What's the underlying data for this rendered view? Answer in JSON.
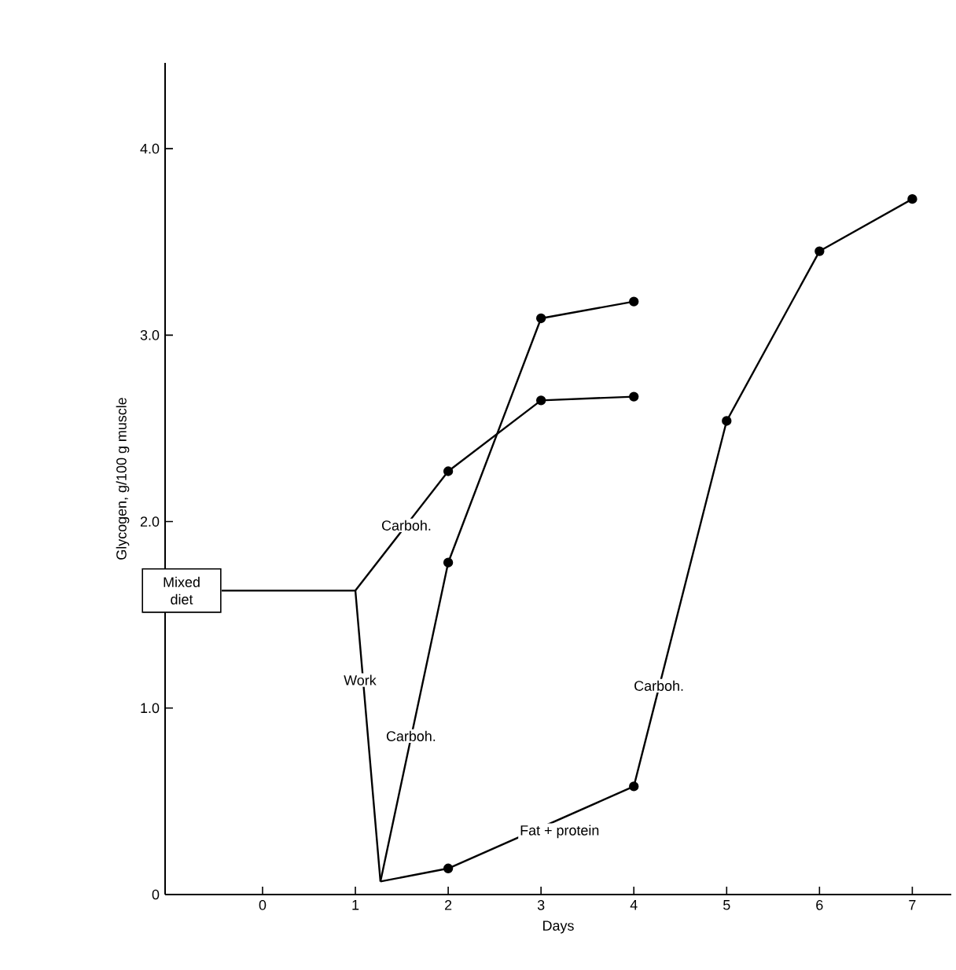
{
  "chart_data": {
    "type": "line",
    "xlabel": "Days",
    "ylabel": "Glycogen, g/100 g muscle",
    "xlim": [
      -1.05,
      7.42
    ],
    "ylim": [
      0,
      4.46
    ],
    "xticks": [
      0,
      1,
      2,
      3,
      4,
      5,
      6,
      7
    ],
    "yticks": [
      0,
      {
        "value": 1,
        "label": "1.0"
      },
      {
        "value": 2,
        "label": "2.0"
      },
      {
        "value": 3,
        "label": "3.0"
      },
      {
        "value": 4,
        "label": "4.0"
      }
    ],
    "series": [
      {
        "color": "#000000",
        "marker": "none",
        "x": [
          -0.44,
          1,
          1.27
        ],
        "values": [
          1.63,
          1.63,
          0.07
        ]
      },
      {
        "color": "#000000",
        "marker": "circle",
        "x": [
          1,
          2,
          3,
          4
        ],
        "values": [
          1.63,
          2.27,
          2.65,
          2.67
        ]
      },
      {
        "color": "#000000",
        "marker": "circle",
        "x": [
          1.27,
          2,
          3,
          4
        ],
        "values": [
          0.07,
          1.78,
          3.09,
          3.18
        ]
      },
      {
        "color": "#000000",
        "marker": "circle",
        "x": [
          1.27,
          2,
          4,
          5,
          6,
          7
        ],
        "values": [
          0.07,
          0.14,
          0.58,
          2.54,
          3.45,
          3.73
        ]
      }
    ],
    "annotations": [
      {
        "text": "Mixed diet",
        "x": -0.44,
        "y": 1.63
      },
      {
        "text": "Work",
        "x": 1.05,
        "y": 1.15
      },
      {
        "text": "Carboh.",
        "x": 1.55,
        "y": 1.98
      },
      {
        "text": "Carboh.",
        "x": 1.6,
        "y": 0.85
      },
      {
        "text": "Carboh.",
        "x": 4.27,
        "y": 1.12
      },
      {
        "text": "Fat + protein",
        "x": 3.2,
        "y": 0.4
      }
    ],
    "grid": false
  }
}
